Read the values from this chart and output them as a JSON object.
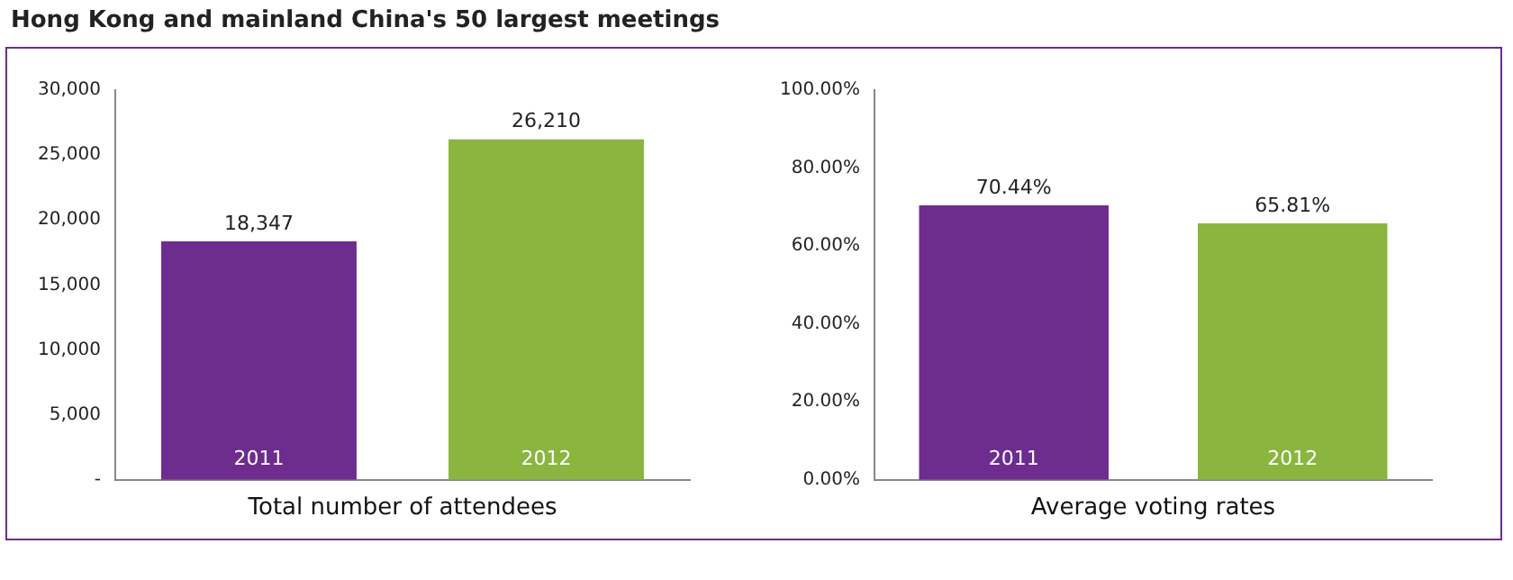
{
  "chart_data": [
    {
      "type": "bar",
      "title": "Hong Kong and mainland China's 50 largest meetings",
      "xlabel": "Total number of attendees",
      "categories": [
        "2011",
        "2012"
      ],
      "values": [
        18347,
        26210
      ],
      "colors": [
        "#6e2c8e",
        "#8ab53f"
      ],
      "value_labels": [
        "18,347",
        "26,210"
      ],
      "ylim": [
        0,
        30000
      ],
      "yticks": [
        {
          "value": 0,
          "label": "-"
        },
        {
          "value": 5000,
          "label": "5,000"
        },
        {
          "value": 10000,
          "label": "10,000"
        },
        {
          "value": 15000,
          "label": "15,000"
        },
        {
          "value": 20000,
          "label": "20,000"
        },
        {
          "value": 25000,
          "label": "25,000"
        },
        {
          "value": 30000,
          "label": "30,000"
        }
      ],
      "grid": false,
      "legend": false
    },
    {
      "type": "bar",
      "xlabel": "Average voting rates",
      "categories": [
        "2011",
        "2012"
      ],
      "values": [
        70.44,
        65.81
      ],
      "colors": [
        "#6e2c8e",
        "#8ab53f"
      ],
      "value_labels": [
        "70.44%",
        "65.81%"
      ],
      "ylim": [
        0,
        100
      ],
      "yticks": [
        {
          "value": 0,
          "label": "0.00%"
        },
        {
          "value": 20,
          "label": "20.00%"
        },
        {
          "value": 40,
          "label": "40.00%"
        },
        {
          "value": 60,
          "label": "60.00%"
        },
        {
          "value": 80,
          "label": "80.00%"
        },
        {
          "value": 100,
          "label": "100.00%"
        }
      ],
      "grid": false,
      "legend": false
    }
  ]
}
